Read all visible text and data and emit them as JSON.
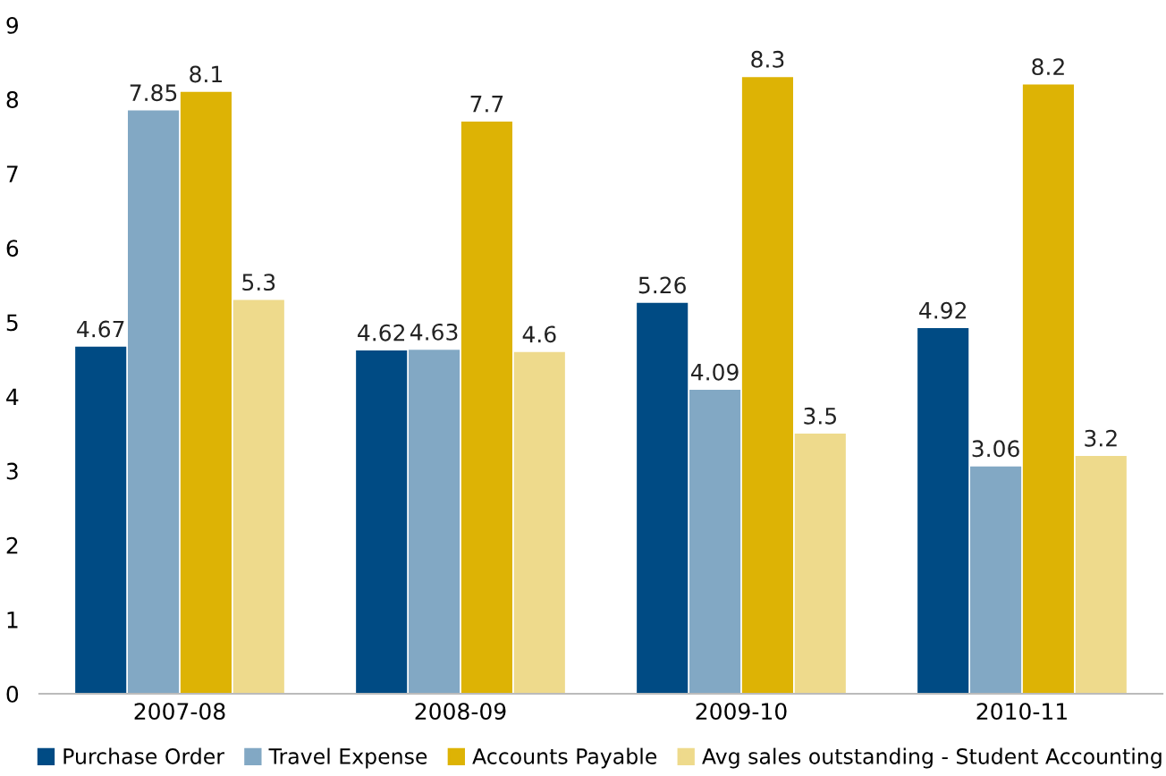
{
  "chart_data": {
    "type": "bar",
    "categories": [
      "2007-08",
      "2008-09",
      "2009-10",
      "2010-11"
    ],
    "series": [
      {
        "name": "Purchase Order",
        "color": "#004b84",
        "values": [
          4.67,
          4.62,
          5.26,
          4.92
        ]
      },
      {
        "name": "Travel Expense",
        "color": "#82a8c4",
        "values": [
          7.85,
          4.63,
          4.09,
          3.06
        ]
      },
      {
        "name": "Accounts Payable",
        "color": "#ddb305",
        "values": [
          8.1,
          7.7,
          8.3,
          8.2
        ]
      },
      {
        "name": "Avg sales outstanding - Student Accounting",
        "color": "#eeda8c",
        "values": [
          5.3,
          4.6,
          3.5,
          3.2
        ]
      }
    ],
    "ylim": [
      0,
      9
    ],
    "yticks": [
      0,
      1,
      2,
      3,
      4,
      5,
      6,
      7,
      8,
      9
    ],
    "grid": false,
    "legend": "bottom",
    "data_labels": true
  }
}
